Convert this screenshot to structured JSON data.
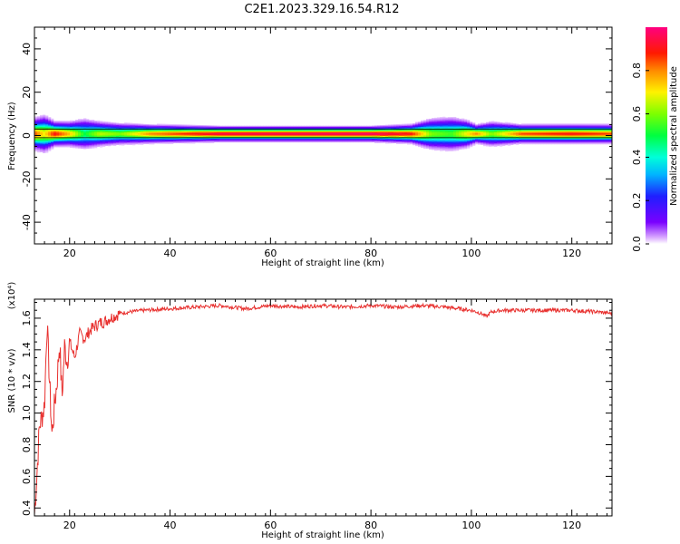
{
  "title": "C2E1.2023.329.16.54.R12",
  "colors": {
    "snr_line": "#e8302e",
    "axis": "#000000",
    "background": "#ffffff"
  },
  "chart_data": [
    {
      "type": "heatmap",
      "xlabel": "Height of straight line (km)",
      "ylabel": "Frequency (Hz)",
      "xlim": [
        13,
        128
      ],
      "ylim": [
        -50,
        50
      ],
      "xticks": [
        20,
        40,
        60,
        80,
        100,
        120
      ],
      "yticks": [
        -40,
        -20,
        0,
        20,
        40
      ],
      "colorbar": {
        "label": "Normalized spectral amplitude",
        "range": [
          0.0,
          1.0
        ],
        "ticks": [
          "0.0",
          "0.2",
          "0.4",
          "0.6",
          "0.8"
        ],
        "tick_values": [
          0.0,
          0.2,
          0.4,
          0.6,
          0.8
        ],
        "colormap": "rainbow (violet-blue-cyan-green-yellow-red-magenta)"
      },
      "band": {
        "center_hz": 1,
        "x": [
          13,
          15,
          17,
          20,
          23,
          26,
          30,
          36,
          50,
          80,
          88,
          92,
          96,
          99,
          101,
          104,
          110,
          120,
          128
        ],
        "peak_amplitude": [
          0.85,
          0.7,
          0.9,
          0.75,
          0.5,
          0.65,
          0.6,
          0.8,
          0.95,
          0.98,
          0.9,
          0.6,
          0.55,
          0.7,
          0.8,
          0.6,
          0.85,
          0.9,
          0.85
        ],
        "halfwidth_hz": [
          5,
          6,
          4,
          4,
          5,
          4,
          3.5,
          3,
          2.5,
          2.5,
          3,
          5,
          5.5,
          4.5,
          3,
          4,
          3,
          3,
          3
        ]
      },
      "reference_lines_hz": [
        -1,
        3
      ]
    },
    {
      "type": "line",
      "xlabel": "Height of straight line (km)",
      "ylabel": "SNR (10 * v/v)",
      "scale_label": "(x10⁴)",
      "xlim": [
        13,
        128
      ],
      "ylim": [
        0.35,
        1.72
      ],
      "xticks": [
        20,
        40,
        60,
        80,
        100,
        120
      ],
      "yticks": [
        "0.4",
        "0.6",
        "0.8",
        "1.0",
        "1.2",
        "1.4",
        "1.6"
      ],
      "ytick_values": [
        0.4,
        0.6,
        0.8,
        1.0,
        1.2,
        1.4,
        1.6
      ],
      "series": [
        {
          "x": [
            13.0,
            13.5,
            14.0,
            14.5,
            15.0,
            15.5,
            16.0,
            16.5,
            17.0,
            17.5,
            18.0,
            18.5,
            19.0,
            19.5,
            20.0,
            21.0,
            22.0,
            23.0,
            24.0,
            25.0,
            26.0,
            27.0,
            28.0,
            30.0,
            32.0,
            35.0,
            40.0,
            45.0,
            50.0,
            55.0,
            60.0,
            65.0,
            70.0,
            75.0,
            80.0,
            85.0,
            90.0,
            95.0,
            100.0,
            102.0,
            103.0,
            104.0,
            106.0,
            110.0,
            115.0,
            120.0,
            125.0,
            128.0
          ],
          "y": [
            0.36,
            0.62,
            0.92,
            0.98,
            1.05,
            1.58,
            1.2,
            0.86,
            1.05,
            1.2,
            1.45,
            1.1,
            1.42,
            1.33,
            1.45,
            1.35,
            1.5,
            1.47,
            1.52,
            1.55,
            1.57,
            1.58,
            1.6,
            1.63,
            1.64,
            1.65,
            1.66,
            1.67,
            1.68,
            1.66,
            1.68,
            1.67,
            1.68,
            1.67,
            1.68,
            1.67,
            1.68,
            1.67,
            1.65,
            1.63,
            1.61,
            1.64,
            1.65,
            1.65,
            1.65,
            1.65,
            1.64,
            1.63
          ]
        }
      ]
    }
  ]
}
